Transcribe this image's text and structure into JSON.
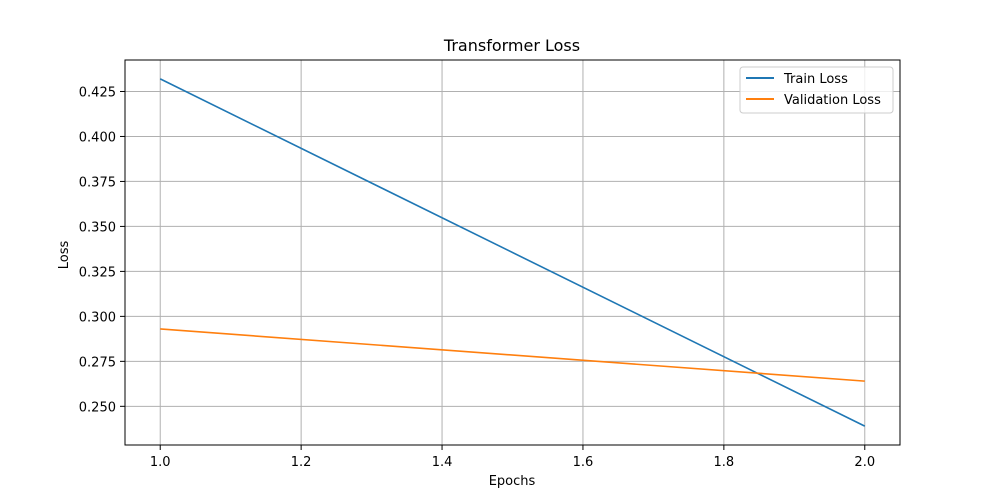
{
  "chart_data": {
    "type": "line",
    "title": "Transformer Loss",
    "xlabel": "Epochs",
    "ylabel": "Loss",
    "xlim": [
      0.95,
      2.05
    ],
    "ylim": [
      0.2285,
      0.4425
    ],
    "xticks": [
      1.0,
      1.2,
      1.4,
      1.6,
      1.8,
      2.0
    ],
    "xtick_labels": [
      "1.0",
      "1.2",
      "1.4",
      "1.6",
      "1.8",
      "2.0"
    ],
    "yticks": [
      0.25,
      0.275,
      0.3,
      0.325,
      0.35,
      0.375,
      0.4,
      0.425
    ],
    "ytick_labels": [
      "0.250",
      "0.275",
      "0.300",
      "0.325",
      "0.350",
      "0.375",
      "0.400",
      "0.425"
    ],
    "grid": true,
    "legend_position": "top-right",
    "x": [
      1.0,
      2.0
    ],
    "series": [
      {
        "name": "Train Loss",
        "values": [
          0.432,
          0.239
        ],
        "color": "#1f77b4"
      },
      {
        "name": "Validation Loss",
        "values": [
          0.293,
          0.264
        ],
        "color": "#ff7f0e"
      }
    ]
  }
}
